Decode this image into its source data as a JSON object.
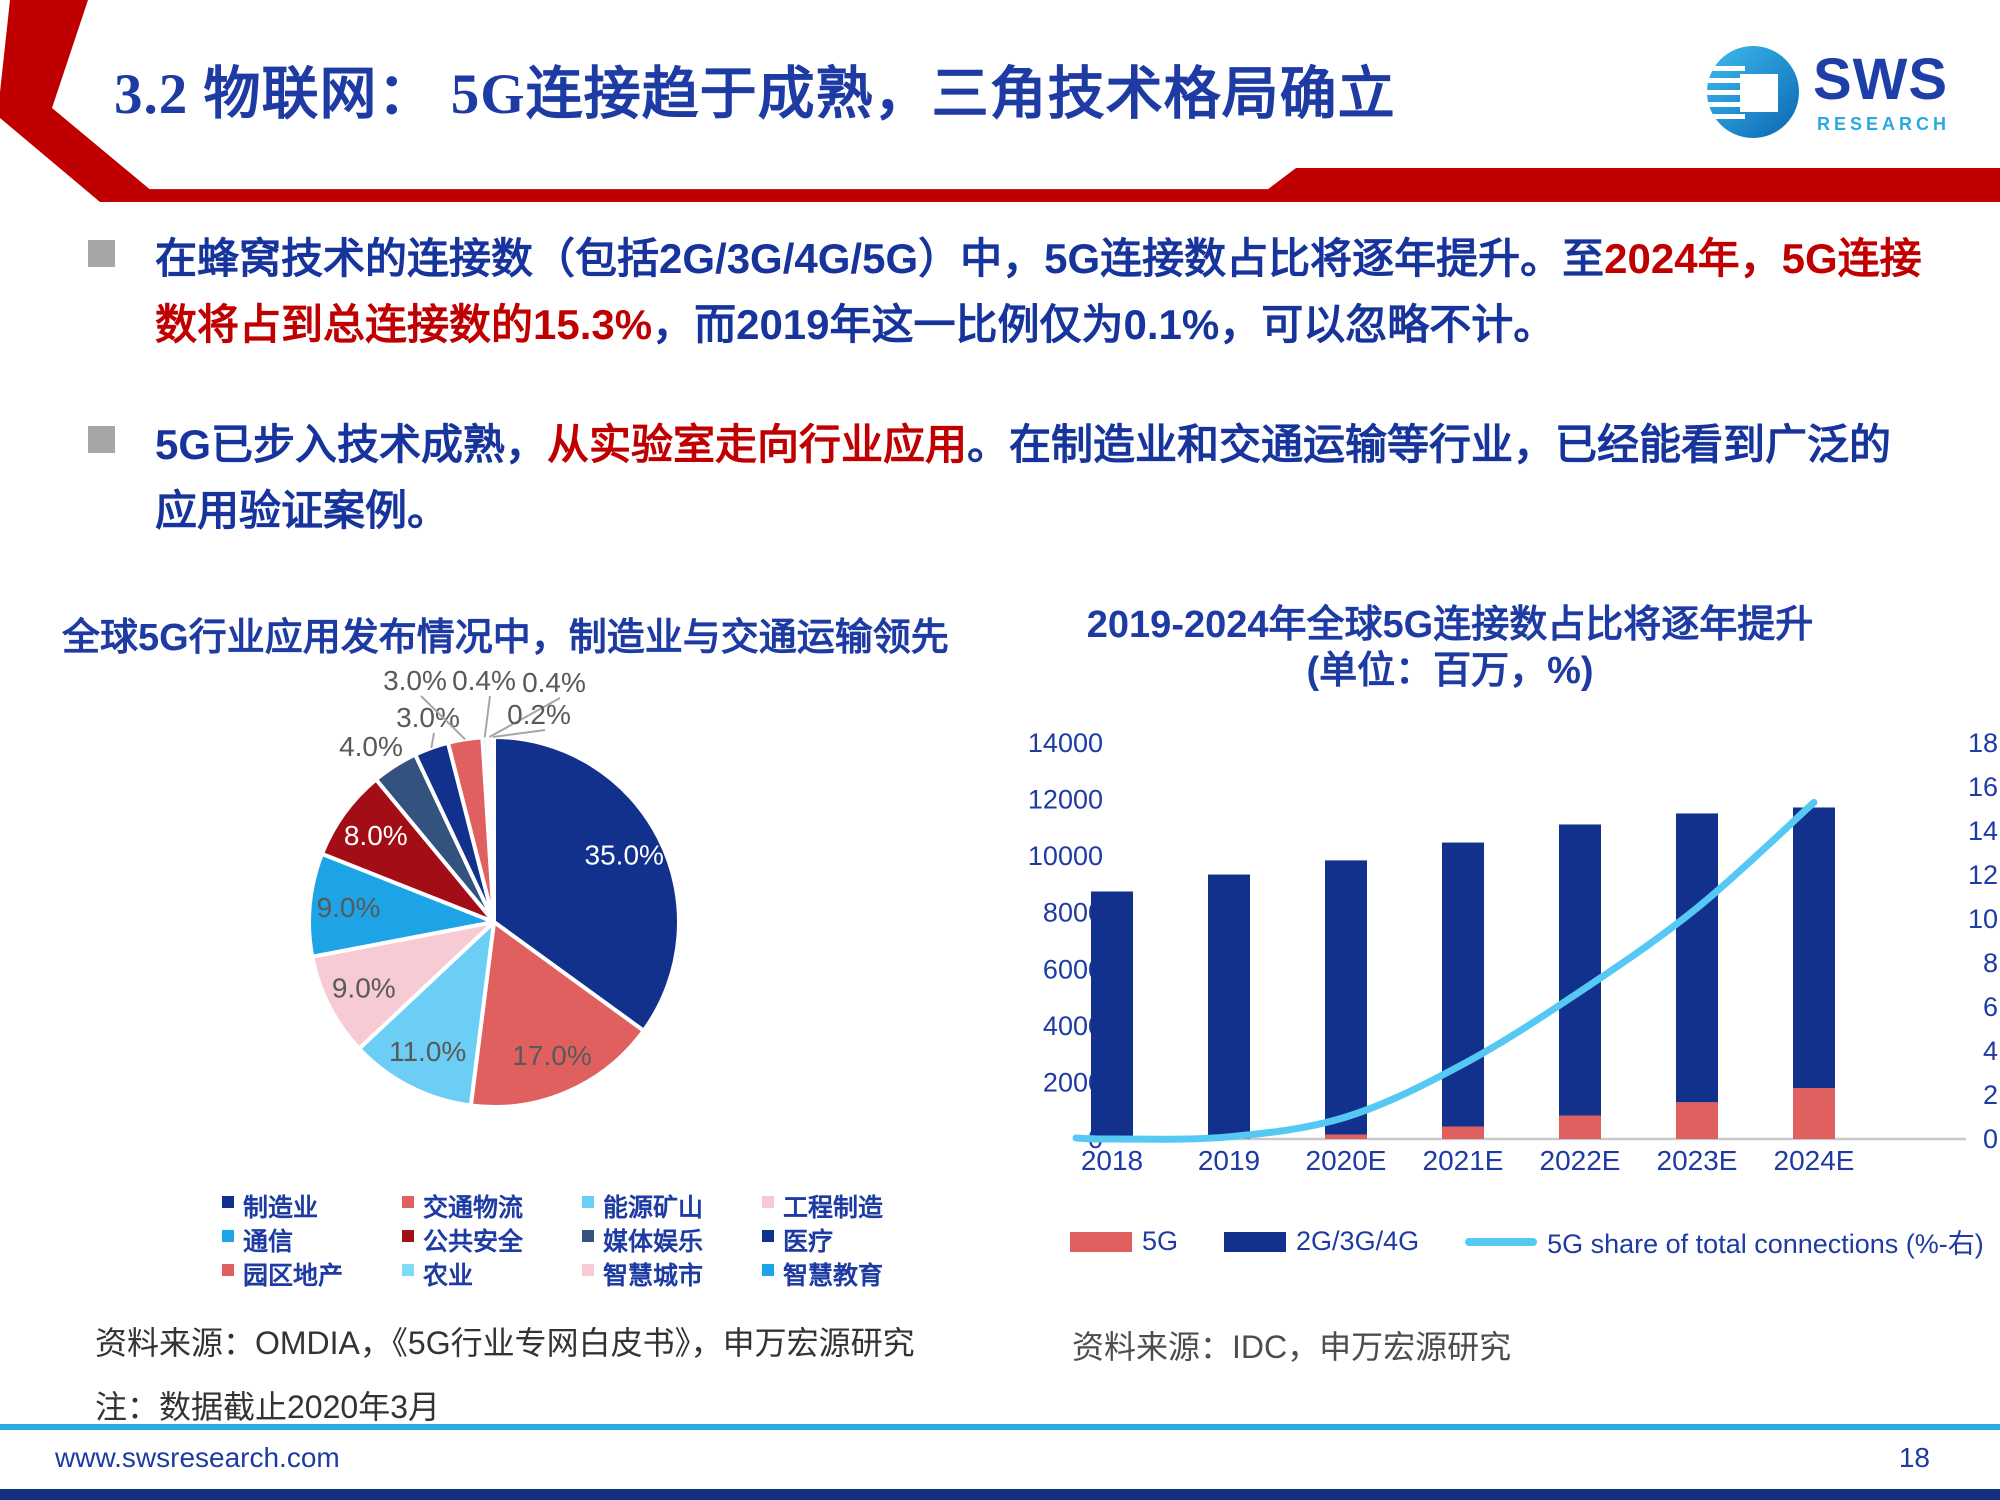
{
  "header": {
    "title": "3.2 物联网： 5G连接趋于成熟，三角技术格局确立",
    "logo": {
      "brand": "SWS",
      "sub": "RESEARCH"
    }
  },
  "colors": {
    "accent_red": "#C00000",
    "title_blue": "#1D3BA3",
    "body_blue": "#16349C",
    "navy": "#11318C",
    "salmon": "#E0605F",
    "line_cyan": "#55C9F3",
    "footer_rule_cyan": "#29ABE2",
    "bottom_bar_navy": "#15307E"
  },
  "bullets": [
    {
      "segments": [
        {
          "text": "在蜂窝技术的连接数（包括2G/3G/4G/5G）中，5G连接数占比将逐年提升。至",
          "style": "blue"
        },
        {
          "text": "2024年，5G连接数将占到总连接数的15.3%",
          "style": "red"
        },
        {
          "text": "，而2019年这一比例仅为0.1%，可以忽略不计。",
          "style": "blue"
        }
      ]
    },
    {
      "segments": [
        {
          "text": "5G已步入技术成熟，",
          "style": "blue"
        },
        {
          "text": "从实验室走向行业应用",
          "style": "red"
        },
        {
          "text": "。在制造业和交通运输等行业，已经能看到广泛的应用验证案例。",
          "style": "blue"
        }
      ]
    }
  ],
  "chart_data": [
    {
      "type": "pie",
      "title": "全球5G行业应用发布情况中，制造业与交通运输领先",
      "labels": [
        "制造业",
        "交通物流",
        "能源矿山",
        "工程制造",
        "通信",
        "公共安全",
        "媒体娱乐",
        "医疗",
        "园区地产",
        "农业",
        "智慧城市",
        "智慧教育"
      ],
      "values": [
        35.0,
        17.0,
        11.0,
        9.0,
        9.0,
        8.0,
        4.0,
        3.0,
        3.0,
        0.4,
        0.4,
        0.2
      ],
      "data_labels": [
        "35.0%",
        "17.0%",
        "11.0%",
        "9.0%",
        "9.0%",
        "8.0%",
        "4.0%",
        "3.0%",
        "3.0%",
        "0.4%",
        "0.4%",
        "0.2%"
      ],
      "colors": [
        "#11318C",
        "#E0605F",
        "#6CCEF5",
        "#F6CBD3",
        "#1CA4E6",
        "#A30D15",
        "#34527E",
        "#11318C",
        "#E0605F",
        "#7FDBF8",
        "#F6CBD3",
        "#1CA4E6"
      ],
      "legend_position": "bottom"
    },
    {
      "type": "bar",
      "title": "2019-2024年全球5G连接数占比将逐年提升",
      "subtitle": "(单位：百万，%)",
      "categories": [
        "2018",
        "2019",
        "2020E",
        "2021E",
        "2022E",
        "2023E",
        "2024E"
      ],
      "stacked": true,
      "grid": false,
      "legend_position": "bottom",
      "series": [
        {
          "name": "5G",
          "kind": "bar",
          "color": "#E0605F",
          "values": [
            5,
            10,
            160,
            440,
            830,
            1300,
            1800
          ]
        },
        {
          "name": "2G/3G/4G",
          "kind": "bar",
          "color": "#11318C",
          "values": [
            8745,
            9340,
            9690,
            10040,
            10290,
            10210,
            9920
          ]
        },
        {
          "name": "5G share of total connections (%-右)",
          "kind": "line",
          "axis": "right",
          "color": "#55C9F3",
          "values": [
            0.0,
            0.1,
            1.0,
            3.4,
            6.7,
            10.5,
            15.3
          ]
        }
      ],
      "left_axis": {
        "min": 0,
        "max": 14000,
        "step": 2000
      },
      "right_axis": {
        "min": 0,
        "max": 18,
        "step": 2
      }
    }
  ],
  "sources": {
    "left_line1": "资料来源：OMDIA，《5G行业专网白皮书》，申万宏源研究",
    "left_line2": "注：数据截止2020年3月",
    "right": "资料来源：IDC，申万宏源研究"
  },
  "footer": {
    "url": "www.swsresearch.com",
    "page": "18"
  }
}
